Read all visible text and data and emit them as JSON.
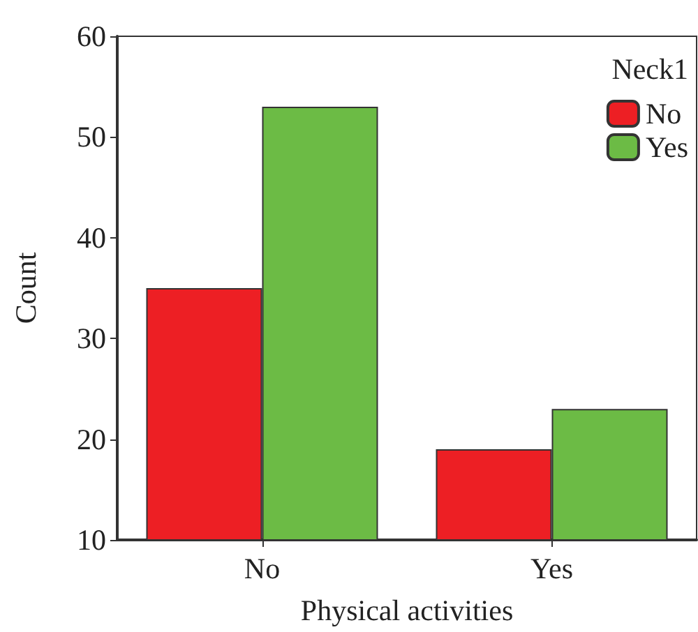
{
  "chart_data": {
    "type": "bar",
    "xlabel": "Physical activities",
    "ylabel": "Count",
    "legend_title": "Neck1",
    "categories": [
      "No",
      "Yes"
    ],
    "series": [
      {
        "name": "No",
        "color": "#ed1f24",
        "values": [
          35,
          19
        ]
      },
      {
        "name": "Yes",
        "color": "#6cbb45",
        "values": [
          53,
          23
        ]
      }
    ],
    "ylim": [
      10,
      60
    ],
    "yticks": [
      10,
      20,
      30,
      40,
      50,
      60
    ],
    "grid": false,
    "legend": "top right"
  }
}
